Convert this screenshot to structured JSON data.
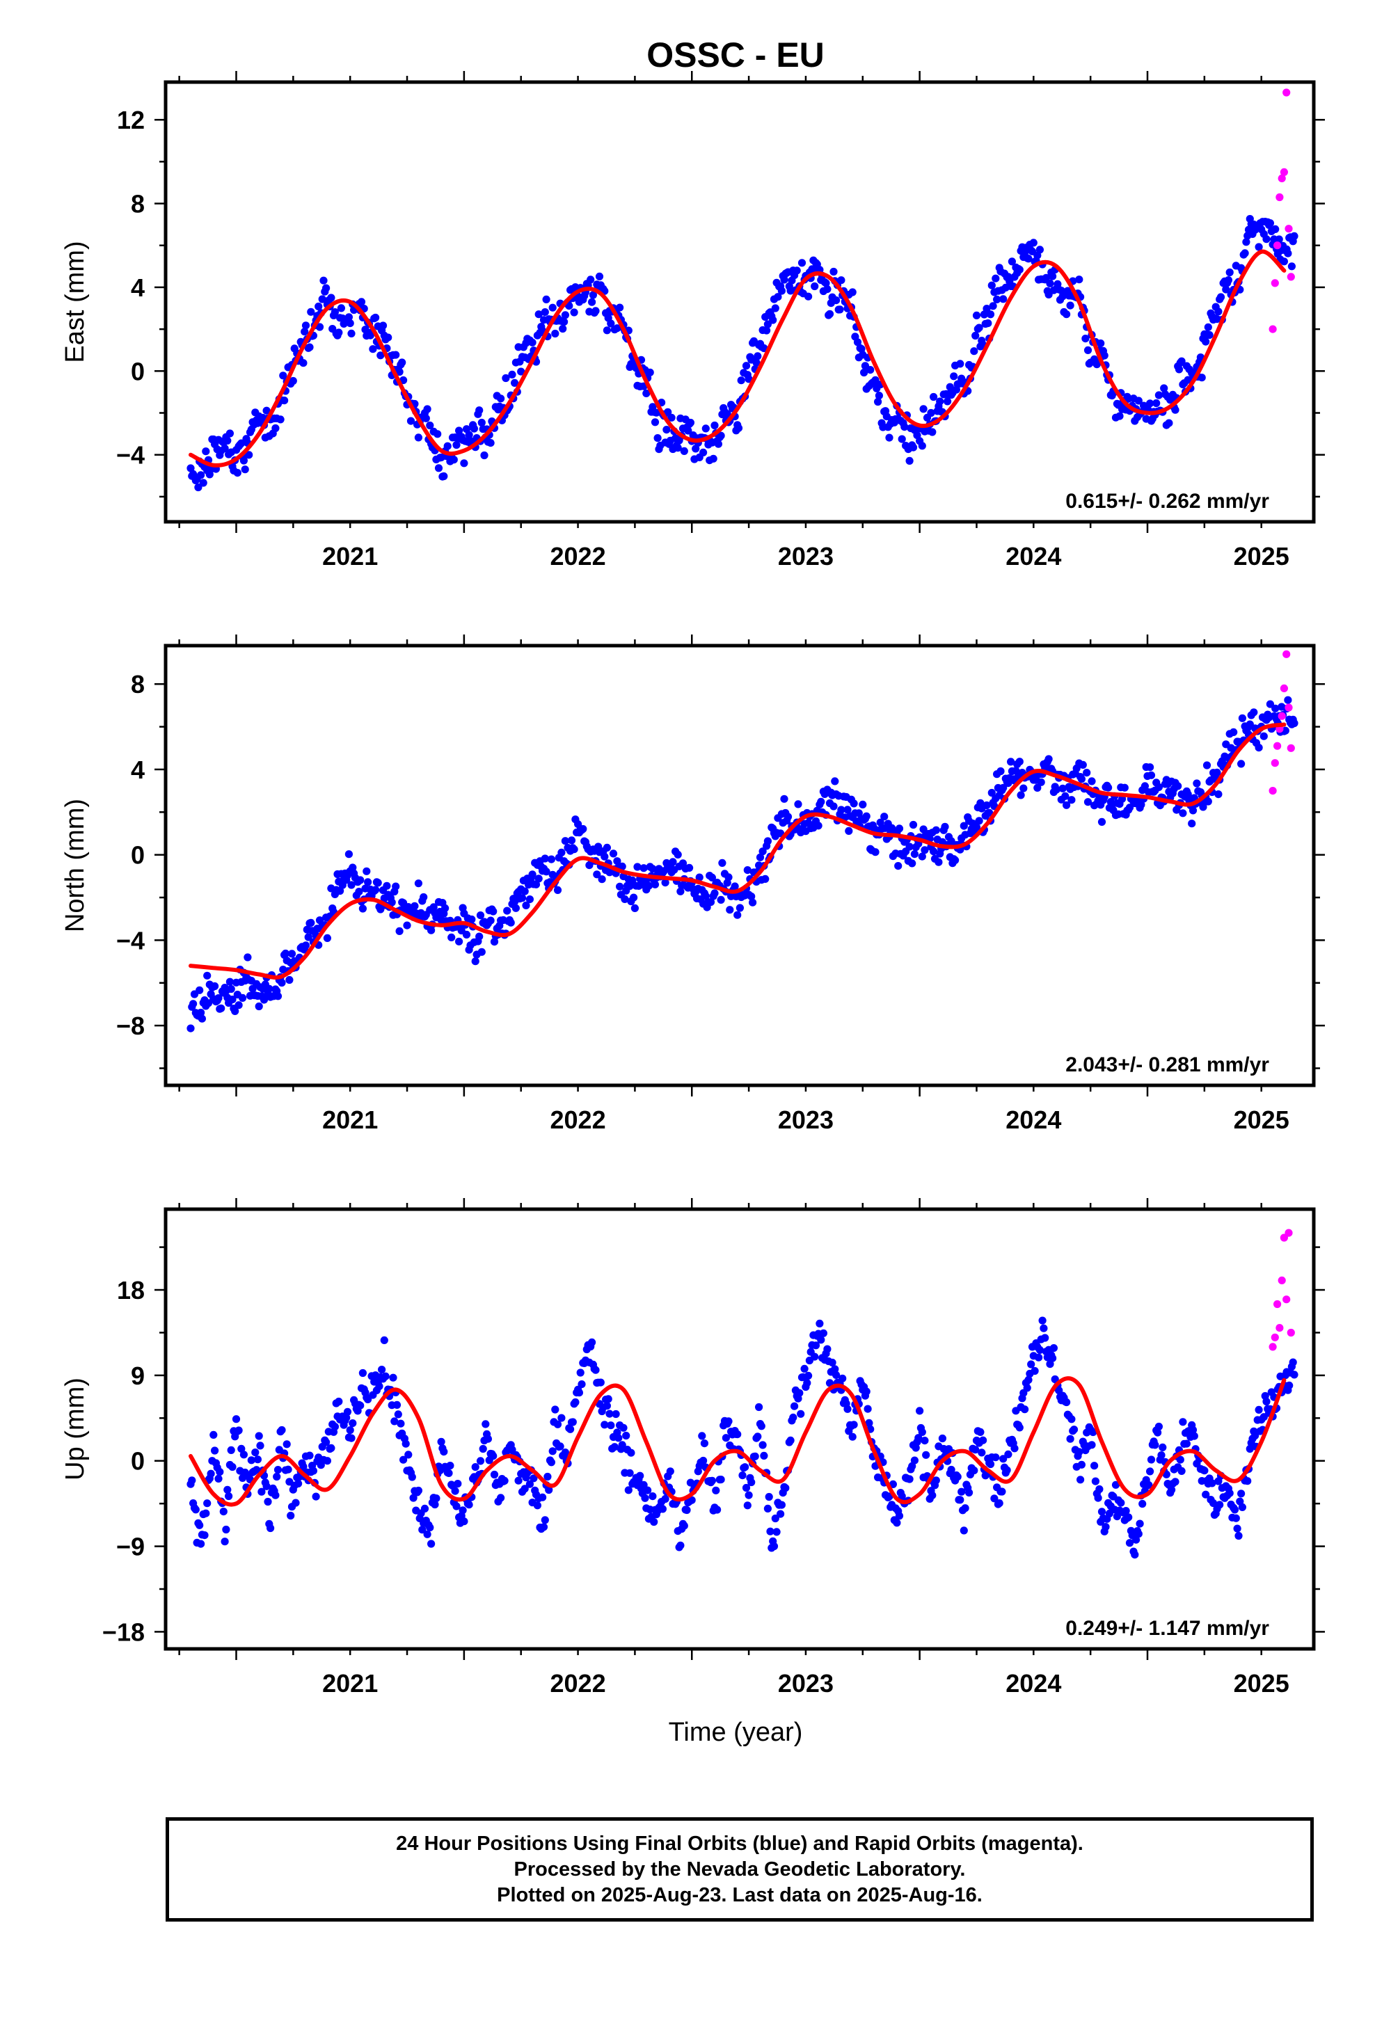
{
  "title": "OSSC - EU",
  "xlabel": "Time (year)",
  "caption": [
    "24 Hour Positions Using Final Orbits (blue) and Rapid Orbits (magenta).",
    "Processed by the Nevada Geodetic Laboratory.",
    "Plotted on 2025-Aug-23. Last data on 2025-Aug-16."
  ],
  "colors": {
    "final_orbits": "#0000ff",
    "rapid_orbits": "#ff00ff",
    "model": "#ff0000"
  },
  "chart_data": [
    {
      "type": "scatter",
      "component": "east",
      "ylabel": "East (mm)",
      "xlim": [
        2020.69,
        2025.73
      ],
      "ylim": [
        -7.2,
        13.8
      ],
      "yticks": [
        -4,
        0,
        4,
        8,
        12
      ],
      "xticks": [
        2021,
        2022,
        2023,
        2024,
        2025
      ],
      "rate_label": "0.615+/- 0.262 mm/yr",
      "model": {
        "x": [
          2020.8,
          2020.9,
          2021.0,
          2021.1,
          2021.2,
          2021.3,
          2021.4,
          2021.5,
          2021.6,
          2021.7,
          2021.8,
          2021.9,
          2022.0,
          2022.1,
          2022.2,
          2022.3,
          2022.4,
          2022.5,
          2022.6,
          2022.7,
          2022.8,
          2022.9,
          2023.0,
          2023.1,
          2023.2,
          2023.3,
          2023.4,
          2023.5,
          2023.6,
          2023.7,
          2023.8,
          2023.9,
          2024.0,
          2024.1,
          2024.2,
          2024.3,
          2024.4,
          2024.5,
          2024.6,
          2024.7,
          2024.8,
          2024.9,
          2025.0,
          2025.1,
          2025.2,
          2025.3,
          2025.4,
          2025.5,
          2025.6
        ],
        "y": [
          -4.0,
          -4.5,
          -4.2,
          -3.0,
          -1.0,
          1.3,
          3.0,
          3.3,
          2.0,
          -0.2,
          -2.3,
          -3.8,
          -3.8,
          -3.0,
          -1.5,
          0.5,
          2.6,
          3.8,
          3.7,
          2.0,
          -0.5,
          -2.5,
          -3.3,
          -3.0,
          -1.8,
          0.2,
          2.5,
          4.4,
          4.5,
          3.0,
          0.4,
          -1.7,
          -2.6,
          -2.2,
          -0.8,
          1.3,
          3.5,
          5.0,
          5.0,
          3.3,
          0.4,
          -1.5,
          -2.0,
          -1.7,
          -0.5,
          1.7,
          4.2,
          5.7,
          4.8
        ]
      },
      "final_orbits": {
        "x": [
          2020.8,
          2020.85,
          2020.9,
          2020.95,
          2021.0,
          2021.05,
          2021.1,
          2021.15,
          2021.2,
          2021.25,
          2021.3,
          2021.35,
          2021.4,
          2021.45,
          2021.5,
          2021.55,
          2021.6,
          2021.65,
          2021.7,
          2021.75,
          2021.8,
          2021.85,
          2021.9,
          2021.95,
          2022.0,
          2022.05,
          2022.1,
          2022.15,
          2022.2,
          2022.25,
          2022.3,
          2022.35,
          2022.4,
          2022.45,
          2022.5,
          2022.55,
          2022.6,
          2022.65,
          2022.7,
          2022.75,
          2022.8,
          2022.85,
          2022.9,
          2022.95,
          2023.0,
          2023.05,
          2023.1,
          2023.15,
          2023.2,
          2023.25,
          2023.3,
          2023.35,
          2023.4,
          2023.45,
          2023.5,
          2023.55,
          2023.6,
          2023.65,
          2023.7,
          2023.75,
          2023.8,
          2023.85,
          2023.9,
          2023.95,
          2024.0,
          2024.05,
          2024.1,
          2024.15,
          2024.2,
          2024.25,
          2024.3,
          2024.35,
          2024.4,
          2024.45,
          2024.5,
          2024.55,
          2024.6,
          2024.65,
          2024.7,
          2024.75,
          2024.8,
          2024.85,
          2024.9,
          2024.95,
          2025.0,
          2025.05,
          2025.1,
          2025.15,
          2025.2,
          2025.25,
          2025.3,
          2025.35,
          2025.4,
          2025.45,
          2025.5,
          2025.55,
          2025.6
        ],
        "y": [
          -5.0,
          -4.6,
          -4.1,
          -3.5,
          -3.9,
          -3.6,
          -2.3,
          -2.6,
          -1.3,
          0.3,
          1.5,
          2.6,
          3.5,
          2.6,
          2.6,
          3.0,
          1.6,
          1.5,
          -0.1,
          -0.5,
          -2.4,
          -2.8,
          -4.3,
          -3.5,
          -3.4,
          -2.9,
          -3.2,
          -1.7,
          -1.4,
          0.7,
          0.7,
          2.1,
          2.3,
          3.0,
          3.6,
          3.9,
          3.9,
          2.6,
          2.0,
          -0.1,
          -0.1,
          -2.5,
          -3.0,
          -3.1,
          -3.1,
          -3.2,
          -3.3,
          -1.8,
          -2.1,
          0.3,
          1.3,
          2.7,
          4.3,
          4.3,
          4.3,
          4.7,
          3.6,
          3.6,
          3.5,
          -0.1,
          -0.3,
          -2.2,
          -2.4,
          -3.2,
          -2.9,
          -2.3,
          -2.0,
          -0.2,
          -0.9,
          1.4,
          2.0,
          4.5,
          4.0,
          5.6,
          5.6,
          4.4,
          4.1,
          3.5,
          3.6,
          0.9,
          1.1,
          -1.3,
          -1.6,
          -1.8,
          -2.1,
          -1.5,
          -1.7,
          0.0,
          -0.4,
          1.4,
          2.5,
          4.2,
          4.4,
          6.9,
          6.9,
          6.5,
          5.6
        ]
      },
      "rapid_orbits": {
        "x": [
          2025.55,
          2025.56,
          2025.57,
          2025.58,
          2025.59,
          2025.6,
          2025.61,
          2025.62,
          2025.63
        ],
        "y": [
          2.0,
          4.2,
          6.0,
          8.3,
          9.2,
          9.5,
          13.3,
          6.8,
          4.5
        ]
      }
    },
    {
      "type": "scatter",
      "component": "north",
      "ylabel": "North (mm)",
      "xlim": [
        2020.69,
        2025.73
      ],
      "ylim": [
        -10.8,
        9.8
      ],
      "yticks": [
        -8,
        -4,
        0,
        4,
        8
      ],
      "xticks": [
        2021,
        2022,
        2023,
        2024,
        2025
      ],
      "rate_label": "2.043+/- 0.281 mm/yr",
      "model": {
        "x": [
          2020.8,
          2020.9,
          2021.0,
          2021.1,
          2021.2,
          2021.3,
          2021.4,
          2021.5,
          2021.6,
          2021.7,
          2021.8,
          2021.9,
          2022.0,
          2022.1,
          2022.2,
          2022.3,
          2022.4,
          2022.5,
          2022.6,
          2022.7,
          2022.8,
          2022.9,
          2023.0,
          2023.1,
          2023.2,
          2023.3,
          2023.4,
          2023.5,
          2023.6,
          2023.7,
          2023.8,
          2023.9,
          2024.0,
          2024.1,
          2024.2,
          2024.3,
          2024.4,
          2024.5,
          2024.6,
          2024.7,
          2024.8,
          2024.9,
          2025.0,
          2025.1,
          2025.2,
          2025.3,
          2025.4,
          2025.5,
          2025.6
        ],
        "y": [
          -5.2,
          -5.3,
          -5.4,
          -5.6,
          -5.7,
          -4.8,
          -3.3,
          -2.3,
          -2.1,
          -2.6,
          -3.1,
          -3.3,
          -3.2,
          -3.6,
          -3.7,
          -2.7,
          -1.3,
          -0.2,
          -0.4,
          -0.8,
          -1.0,
          -1.1,
          -1.2,
          -1.5,
          -1.7,
          -0.8,
          0.8,
          1.8,
          1.8,
          1.4,
          1.0,
          0.9,
          0.7,
          0.4,
          0.5,
          1.5,
          3.0,
          3.9,
          3.7,
          3.3,
          2.9,
          2.8,
          2.7,
          2.5,
          2.4,
          3.3,
          4.9,
          5.9,
          6.1
        ]
      },
      "final_orbits": {
        "x": [
          2020.8,
          2020.85,
          2020.9,
          2020.95,
          2021.0,
          2021.05,
          2021.1,
          2021.15,
          2021.2,
          2021.25,
          2021.3,
          2021.35,
          2021.4,
          2021.45,
          2021.5,
          2021.55,
          2021.6,
          2021.65,
          2021.7,
          2021.75,
          2021.8,
          2021.85,
          2021.9,
          2021.95,
          2022.0,
          2022.05,
          2022.1,
          2022.15,
          2022.2,
          2022.25,
          2022.3,
          2022.35,
          2022.4,
          2022.45,
          2022.5,
          2022.55,
          2022.6,
          2022.65,
          2022.7,
          2022.75,
          2022.8,
          2022.85,
          2022.9,
          2022.95,
          2023.0,
          2023.05,
          2023.1,
          2023.15,
          2023.2,
          2023.25,
          2023.3,
          2023.35,
          2023.4,
          2023.45,
          2023.5,
          2023.55,
          2023.6,
          2023.65,
          2023.7,
          2023.75,
          2023.8,
          2023.85,
          2023.9,
          2023.95,
          2024.0,
          2024.05,
          2024.1,
          2024.15,
          2024.2,
          2024.25,
          2024.3,
          2024.35,
          2024.4,
          2024.45,
          2024.5,
          2024.55,
          2024.6,
          2024.65,
          2024.7,
          2024.75,
          2024.8,
          2024.85,
          2024.9,
          2024.95,
          2025.0,
          2025.05,
          2025.1,
          2025.15,
          2025.2,
          2025.25,
          2025.3,
          2025.35,
          2025.4,
          2025.45,
          2025.5,
          2025.55,
          2025.6
        ],
        "y": [
          -7.5,
          -7.1,
          -6.4,
          -6.5,
          -6.6,
          -5.7,
          -6.6,
          -6.1,
          -6.0,
          -4.9,
          -3.8,
          -3.3,
          -3.3,
          -1.4,
          -0.9,
          -1.8,
          -1.4,
          -1.8,
          -2.4,
          -3.0,
          -2.3,
          -2.9,
          -2.9,
          -3.2,
          -3.1,
          -4.0,
          -3.0,
          -3.6,
          -2.8,
          -2.1,
          -1.4,
          -0.6,
          -1.3,
          0.4,
          1.1,
          0.4,
          -0.9,
          -0.5,
          -1.2,
          -1.7,
          -1.4,
          -1.2,
          -0.7,
          -1.0,
          -1.4,
          -2.2,
          -1.7,
          -1.1,
          -2.3,
          -1.4,
          -0.8,
          0.9,
          1.7,
          1.1,
          1.5,
          1.6,
          2.8,
          2.2,
          2.2,
          1.8,
          0.8,
          1.0,
          0.8,
          0.0,
          1.0,
          0.5,
          0.5,
          0.0,
          0.8,
          1.8,
          2.0,
          2.9,
          3.9,
          3.8,
          3.7,
          4.1,
          3.2,
          3.0,
          3.7,
          2.9,
          2.3,
          2.8,
          2.7,
          2.5,
          3.2,
          2.4,
          3.3,
          2.6,
          2.2,
          3.0,
          3.4,
          4.8,
          5.1,
          6.1,
          6.0,
          6.5,
          6.2
        ]
      },
      "rapid_orbits": {
        "x": [
          2025.55,
          2025.56,
          2025.57,
          2025.58,
          2025.59,
          2025.6,
          2025.61,
          2025.62,
          2025.63
        ],
        "y": [
          3.0,
          4.3,
          5.1,
          5.9,
          6.5,
          7.8,
          9.4,
          6.9,
          5.0
        ]
      }
    },
    {
      "type": "scatter",
      "component": "up",
      "ylabel": "Up (mm)",
      "xlim": [
        2020.69,
        2025.73
      ],
      "ylim": [
        -19.8,
        26.5
      ],
      "yticks": [
        -18,
        -9,
        0,
        9,
        18
      ],
      "xticks": [
        2021,
        2022,
        2023,
        2024,
        2025
      ],
      "rate_label": "0.249+/- 1.147 mm/yr",
      "model": {
        "x": [
          2020.8,
          2020.9,
          2021.0,
          2021.1,
          2021.2,
          2021.3,
          2021.4,
          2021.5,
          2021.6,
          2021.7,
          2021.8,
          2021.9,
          2022.0,
          2022.1,
          2022.2,
          2022.3,
          2022.4,
          2022.5,
          2022.6,
          2022.7,
          2022.8,
          2022.9,
          2023.0,
          2023.1,
          2023.2,
          2023.3,
          2023.4,
          2023.5,
          2023.6,
          2023.7,
          2023.8,
          2023.9,
          2024.0,
          2024.1,
          2024.2,
          2024.3,
          2024.4,
          2024.5,
          2024.6,
          2024.7,
          2024.8,
          2024.9,
          2025.0,
          2025.1,
          2025.2,
          2025.3,
          2025.4,
          2025.5,
          2025.6
        ],
        "y": [
          0.5,
          -3.5,
          -4.5,
          -1.5,
          0.5,
          -1.5,
          -3.0,
          0.5,
          5.0,
          7.5,
          4.5,
          -2.5,
          -4.0,
          -1.0,
          0.5,
          -1.0,
          -2.5,
          2.5,
          7.0,
          7.5,
          2.0,
          -3.5,
          -3.5,
          0.0,
          1.0,
          -1.0,
          -2.0,
          3.0,
          7.5,
          7.0,
          1.0,
          -4.0,
          -3.5,
          0.0,
          1.0,
          -1.0,
          -2.0,
          3.0,
          8.0,
          8.0,
          2.0,
          -3.0,
          -3.5,
          0.0,
          1.0,
          -1.0,
          -2.0,
          2.0,
          8.5
        ]
      },
      "final_orbits": {
        "x": [
          2020.8,
          2020.85,
          2020.9,
          2020.95,
          2021.0,
          2021.05,
          2021.1,
          2021.15,
          2021.2,
          2021.25,
          2021.3,
          2021.35,
          2021.4,
          2021.45,
          2021.5,
          2021.55,
          2021.6,
          2021.65,
          2021.7,
          2021.75,
          2021.8,
          2021.85,
          2021.9,
          2021.95,
          2022.0,
          2022.05,
          2022.1,
          2022.15,
          2022.2,
          2022.25,
          2022.3,
          2022.35,
          2022.4,
          2022.45,
          2022.5,
          2022.55,
          2022.6,
          2022.65,
          2022.7,
          2022.75,
          2022.8,
          2022.85,
          2022.9,
          2022.95,
          2023.0,
          2023.05,
          2023.1,
          2023.15,
          2023.2,
          2023.25,
          2023.3,
          2023.35,
          2023.4,
          2023.45,
          2023.5,
          2023.55,
          2023.6,
          2023.65,
          2023.7,
          2023.75,
          2023.8,
          2023.85,
          2023.9,
          2023.95,
          2024.0,
          2024.05,
          2024.1,
          2024.15,
          2024.2,
          2024.25,
          2024.3,
          2024.35,
          2024.4,
          2024.45,
          2024.5,
          2024.55,
          2024.6,
          2024.65,
          2024.7,
          2024.75,
          2024.8,
          2024.85,
          2024.9,
          2024.95,
          2025.0,
          2025.05,
          2025.1,
          2025.15,
          2025.2,
          2025.25,
          2025.3,
          2025.35,
          2025.4,
          2025.45,
          2025.5,
          2025.55,
          2025.6
        ],
        "y": [
          -3.0,
          -9.0,
          2.0,
          -6.0,
          4.0,
          -3.0,
          1.0,
          -6.0,
          3.0,
          -5.0,
          0.0,
          -2.0,
          2.0,
          6.0,
          4.0,
          8.0,
          7.0,
          10.0,
          5.0,
          0.0,
          -5.0,
          -8.0,
          1.0,
          -3.0,
          -6.0,
          -2.0,
          3.0,
          -4.0,
          2.0,
          -1.0,
          -3.0,
          -6.0,
          4.0,
          0.0,
          8.0,
          12.0,
          7.0,
          3.0,
          1.0,
          -2.0,
          -4.0,
          -6.0,
          -2.0,
          -8.0,
          -3.0,
          1.0,
          -5.0,
          4.0,
          2.0,
          -3.0,
          5.0,
          -9.0,
          -4.0,
          6.0,
          8.0,
          14.0,
          10.0,
          8.0,
          3.0,
          9.0,
          1.0,
          -2.0,
          -6.0,
          -2.0,
          3.0,
          -4.0,
          2.0,
          -1.0,
          -5.0,
          3.0,
          -1.0,
          -3.0,
          2.0,
          5.0,
          11.0,
          13.0,
          8.0,
          5.0,
          0.0,
          4.0,
          -7.0,
          -4.0,
          -6.0,
          -9.0,
          -2.0,
          3.0,
          -4.0,
          1.0,
          4.0,
          -2.0,
          -5.0,
          -3.0,
          -7.0,
          2.0,
          4.0,
          6.0,
          9.0
        ]
      },
      "rapid_orbits": {
        "x": [
          2025.55,
          2025.56,
          2025.57,
          2025.58,
          2025.59,
          2025.6,
          2025.61,
          2025.62,
          2025.63
        ],
        "y": [
          12.0,
          13.0,
          16.5,
          14.0,
          19.0,
          23.5,
          17.0,
          24.0,
          13.5
        ]
      }
    }
  ]
}
